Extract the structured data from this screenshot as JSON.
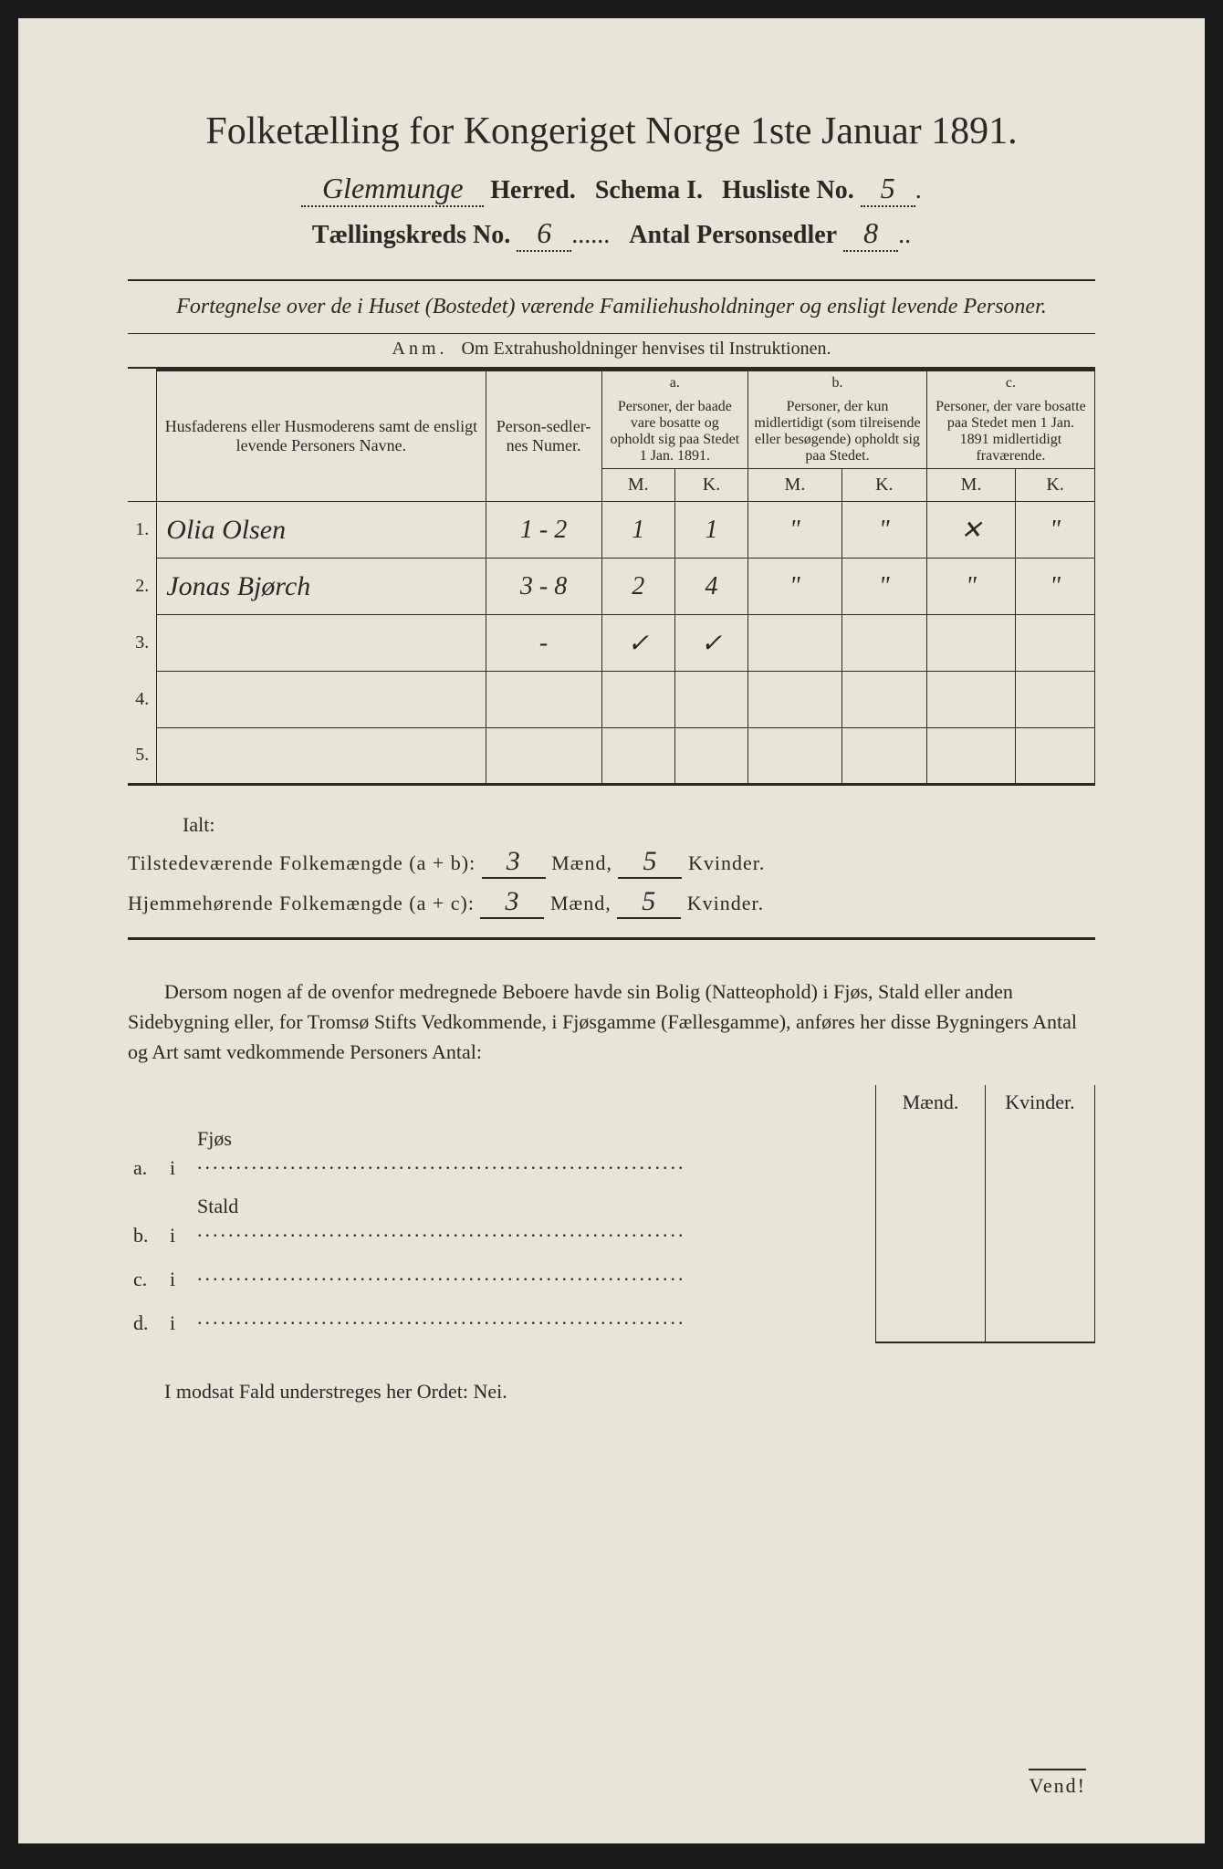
{
  "colors": {
    "paper": "#e8e5d8",
    "ink": "#2a2922",
    "outer": "#1a1a1a"
  },
  "title": "Folketælling for Kongeriget Norge 1ste Januar 1891.",
  "header": {
    "herred_value": "Glemmunge",
    "herred_label": "Herred.",
    "schema_label": "Schema I.",
    "husliste_label": "Husliste No.",
    "husliste_value": "5",
    "kreds_label": "Tællingskreds No.",
    "kreds_value": "6",
    "antal_label": "Antal Personsedler",
    "antal_value": "8"
  },
  "subtitle": "Fortegnelse over de i Huset (Bostedet) værende Familiehusholdninger og ensligt levende Personer.",
  "anm": {
    "label": "Anm.",
    "text": "Om Extrahusholdninger henvises til Instruktionen."
  },
  "table": {
    "col_names": "Husfaderens eller Husmoderens samt de ensligt levende Personers Navne.",
    "col_numer": "Person-sedler-nes Numer.",
    "col_a_head": "a.",
    "col_a": "Personer, der baade vare bosatte og opholdt sig paa Stedet 1 Jan. 1891.",
    "col_b_head": "b.",
    "col_b": "Personer, der kun midlertidigt (som tilreisende eller besøgende) opholdt sig paa Stedet.",
    "col_c_head": "c.",
    "col_c": "Personer, der vare bosatte paa Stedet men 1 Jan. 1891 midlertidigt fraværende.",
    "m": "M.",
    "k": "K.",
    "rows": [
      {
        "num": "1.",
        "name": "Olia Olsen",
        "numer": "1 - 2",
        "a_m": "1",
        "a_k": "1",
        "b_m": "\"",
        "b_k": "\"",
        "c_m": "✕",
        "c_k": "\""
      },
      {
        "num": "2.",
        "name": "Jonas Bjørch",
        "numer": "3 - 8",
        "a_m": "2",
        "a_k": "4",
        "b_m": "\"",
        "b_k": "\"",
        "c_m": "\"",
        "c_k": "\""
      },
      {
        "num": "3.",
        "name": "",
        "numer": "-",
        "a_m": "✓",
        "a_k": "✓",
        "b_m": "",
        "b_k": "",
        "c_m": "",
        "c_k": ""
      },
      {
        "num": "4.",
        "name": "",
        "numer": "",
        "a_m": "",
        "a_k": "",
        "b_m": "",
        "b_k": "",
        "c_m": "",
        "c_k": ""
      },
      {
        "num": "5.",
        "name": "",
        "numer": "",
        "a_m": "",
        "a_k": "",
        "b_m": "",
        "b_k": "",
        "c_m": "",
        "c_k": ""
      }
    ]
  },
  "totals": {
    "ialt": "Ialt:",
    "line1_label": "Tilstedeværende Folkemængde (a + b):",
    "line1_m": "3",
    "line1_k": "5",
    "line2_label": "Hjemmehørende Folkemængde (a + c):",
    "line2_m": "3",
    "line2_k": "5",
    "maend": "Mænd,",
    "kvinder": "Kvinder."
  },
  "paragraph": "Dersom nogen af de ovenfor medregnede Beboere havde sin Bolig (Natteophold) i Fjøs, Stald eller anden Sidebygning eller, for Tromsø Stifts Vedkommende, i Fjøsgamme (Fællesgamme), anføres her disse Bygningers Antal og Art samt vedkommende Personers Antal:",
  "buildings": {
    "maend": "Mænd.",
    "kvinder": "Kvinder.",
    "rows": [
      {
        "label": "a.",
        "i": "i",
        "name": "Fjøs"
      },
      {
        "label": "b.",
        "i": "i",
        "name": "Stald"
      },
      {
        "label": "c.",
        "i": "i",
        "name": ""
      },
      {
        "label": "d.",
        "i": "i",
        "name": ""
      }
    ]
  },
  "nei_line": "I modsat Fald understreges her Ordet: Nei.",
  "vend": "Vend!"
}
